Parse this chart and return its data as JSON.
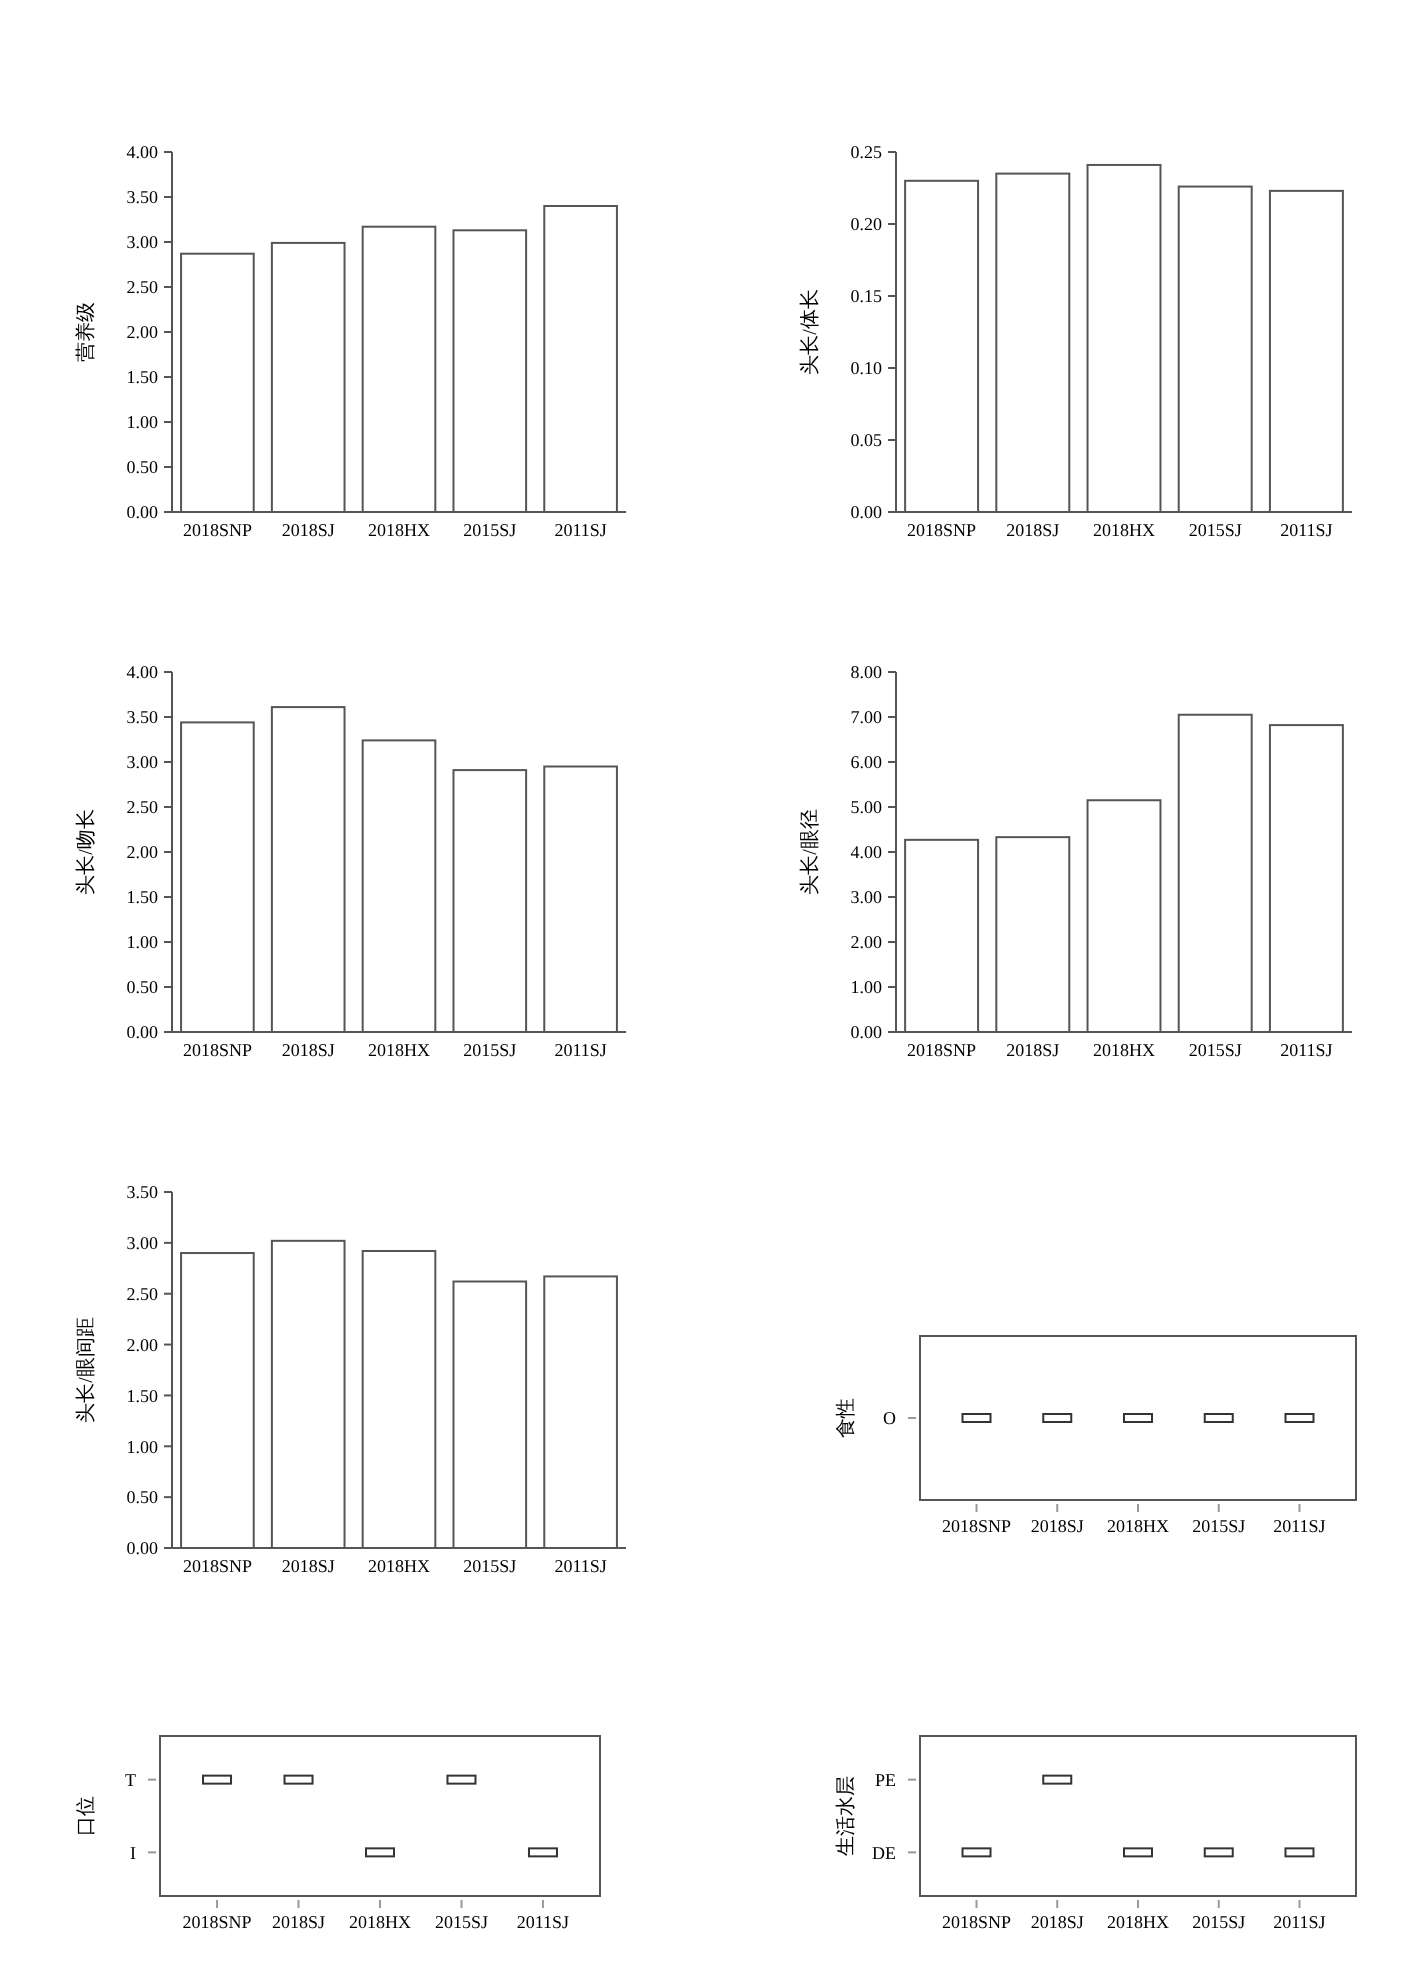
{
  "chart_data": [
    {
      "type": "bar",
      "ylabel": "营养级",
      "categories": [
        "2018SNP",
        "2018SJ",
        "2018HX",
        "2015SJ",
        "2011SJ"
      ],
      "values": [
        2.87,
        2.99,
        3.17,
        3.13,
        3.4
      ],
      "color": "#ffffff",
      "ylim": [
        0,
        4
      ],
      "yticks": [
        {
          "value": 0,
          "label": "0.00"
        },
        {
          "value": 0.5,
          "label": "0.50"
        },
        {
          "value": 1,
          "label": "1.00"
        },
        {
          "value": 1.5,
          "label": "1.50"
        },
        {
          "value": 2,
          "label": "2.00"
        },
        {
          "value": 2.5,
          "label": "2.50"
        },
        {
          "value": 3,
          "label": "3.00"
        },
        {
          "value": 3.5,
          "label": "3.50"
        },
        {
          "value": 4,
          "label": "4.00"
        }
      ]
    },
    {
      "type": "bar",
      "ylabel": "头长/体长",
      "categories": [
        "2018SNP",
        "2018SJ",
        "2018HX",
        "2015SJ",
        "2011SJ"
      ],
      "values": [
        0.23,
        0.235,
        0.241,
        0.226,
        0.223
      ],
      "color": "#ffffff",
      "ylim": [
        0,
        0.25
      ],
      "yticks": [
        {
          "value": 0,
          "label": "0.00"
        },
        {
          "value": 0.05,
          "label": "0.05"
        },
        {
          "value": 0.1,
          "label": "0.10"
        },
        {
          "value": 0.15,
          "label": "0.15"
        },
        {
          "value": 0.2,
          "label": "0.20"
        },
        {
          "value": 0.25,
          "label": "0.25"
        }
      ]
    },
    {
      "type": "bar",
      "ylabel": "头长/吻长",
      "categories": [
        "2018SNP",
        "2018SJ",
        "2018HX",
        "2015SJ",
        "2011SJ"
      ],
      "values": [
        3.44,
        3.61,
        3.24,
        2.91,
        2.95
      ],
      "color": "#ffffff",
      "ylim": [
        0,
        4
      ],
      "yticks": [
        {
          "value": 0,
          "label": "0.00"
        },
        {
          "value": 0.5,
          "label": "0.50"
        },
        {
          "value": 1,
          "label": "1.00"
        },
        {
          "value": 1.5,
          "label": "1.50"
        },
        {
          "value": 2,
          "label": "2.00"
        },
        {
          "value": 2.5,
          "label": "2.50"
        },
        {
          "value": 3,
          "label": "3.00"
        },
        {
          "value": 3.5,
          "label": "3.50"
        },
        {
          "value": 4,
          "label": "4.00"
        }
      ]
    },
    {
      "type": "bar",
      "ylabel": "头长/眼径",
      "categories": [
        "2018SNP",
        "2018SJ",
        "2018HX",
        "2015SJ",
        "2011SJ"
      ],
      "values": [
        4.27,
        4.33,
        5.15,
        7.05,
        6.82
      ],
      "color": "#ffffff",
      "ylim": [
        0,
        8
      ],
      "yticks": [
        {
          "value": 0,
          "label": "0.00"
        },
        {
          "value": 1,
          "label": "1.00"
        },
        {
          "value": 2,
          "label": "2.00"
        },
        {
          "value": 3,
          "label": "3.00"
        },
        {
          "value": 4,
          "label": "4.00"
        },
        {
          "value": 5,
          "label": "5.00"
        },
        {
          "value": 6,
          "label": "6.00"
        },
        {
          "value": 7,
          "label": "7.00"
        },
        {
          "value": 8,
          "label": "8.00"
        }
      ]
    },
    {
      "type": "bar",
      "ylabel": "头长/眼间距",
      "categories": [
        "2018SNP",
        "2018SJ",
        "2018HX",
        "2015SJ",
        "2011SJ"
      ],
      "values": [
        2.9,
        3.02,
        2.92,
        2.62,
        2.67
      ],
      "color": "#ffffff",
      "ylim": [
        0,
        3.5
      ],
      "yticks": [
        {
          "value": 0,
          "label": "0.00"
        },
        {
          "value": 0.5,
          "label": "0.50"
        },
        {
          "value": 1,
          "label": "1.00"
        },
        {
          "value": 1.5,
          "label": "1.50"
        },
        {
          "value": 2,
          "label": "2.00"
        },
        {
          "value": 2.5,
          "label": "2.50"
        },
        {
          "value": 3,
          "label": "3.00"
        },
        {
          "value": 3.5,
          "label": "3.50"
        }
      ]
    },
    {
      "type": "heatmap",
      "ylabel": "食性",
      "categories": [
        "2018SNP",
        "2018SJ",
        "2018HX",
        "2015SJ",
        "2011SJ"
      ],
      "y_categories": [
        "O"
      ],
      "cells": [
        [
          true,
          true,
          true,
          true,
          true
        ]
      ]
    },
    {
      "type": "heatmap",
      "ylabel": "口位",
      "categories": [
        "2018SNP",
        "2018SJ",
        "2018HX",
        "2015SJ",
        "2011SJ"
      ],
      "y_categories": [
        "T",
        "I"
      ],
      "cells": [
        [
          true,
          true,
          null,
          true,
          null
        ],
        [
          null,
          null,
          true,
          null,
          true
        ]
      ]
    },
    {
      "type": "heatmap",
      "ylabel": "生活水层",
      "categories": [
        "2018SNP",
        "2018SJ",
        "2018HX",
        "2015SJ",
        "2011SJ"
      ],
      "y_categories": [
        "PE",
        "DE"
      ],
      "cells": [
        [
          null,
          true,
          null,
          null,
          null
        ],
        [
          true,
          null,
          true,
          true,
          true
        ]
      ]
    }
  ]
}
